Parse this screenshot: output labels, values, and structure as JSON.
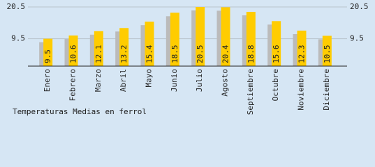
{
  "chart_data": {
    "type": "bar",
    "title": "Temperaturas Medias en ferrol",
    "categories": [
      "Enero",
      "Febrero",
      "Marzo",
      "Abril",
      "Mayo",
      "Junio",
      "Julio",
      "Agosto",
      "Septiembre",
      "Octubre",
      "Noviembre",
      "Diciembre"
    ],
    "values": [
      9.5,
      10.6,
      12.1,
      13.2,
      15.4,
      18.5,
      20.5,
      20.4,
      18.8,
      15.6,
      12.3,
      10.5
    ],
    "color": "#ffcc00",
    "shadow_color": "#bbbbbb",
    "ylim": [
      0,
      20.5
    ],
    "yticks": [
      9.5,
      20.5
    ],
    "grid": true
  }
}
